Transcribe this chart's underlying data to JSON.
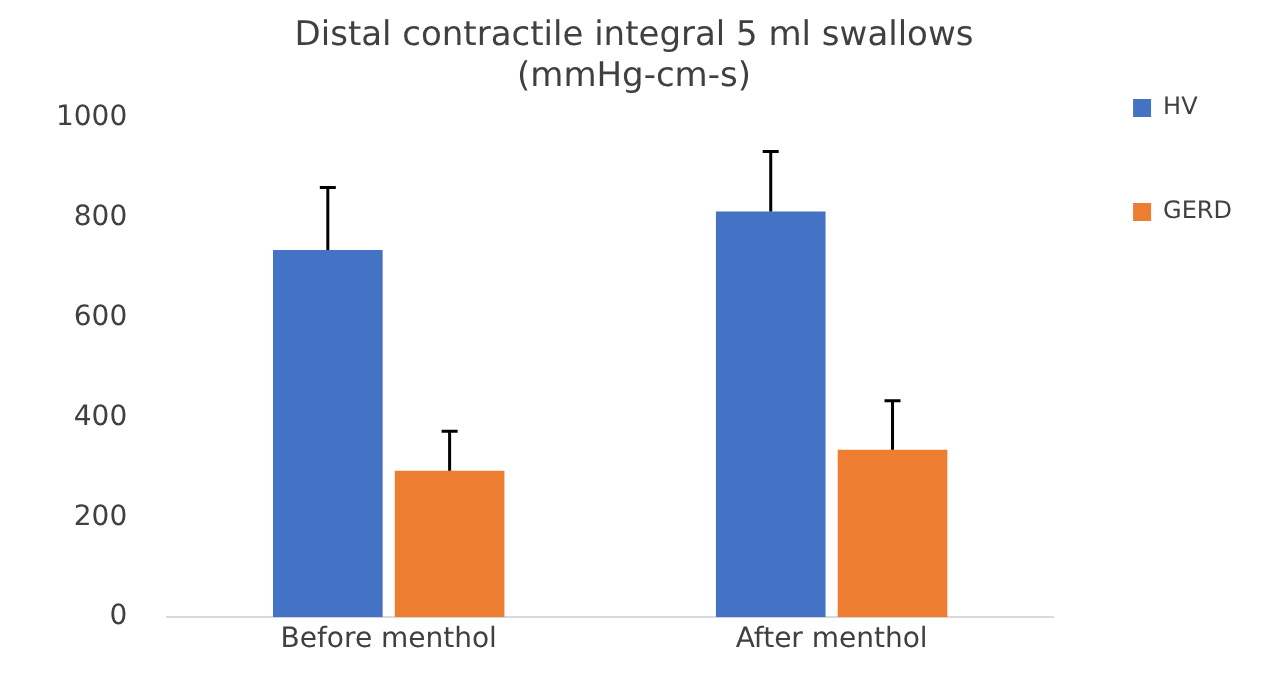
{
  "chart_data": {
    "type": "bar",
    "title": [
      "Distal contractile integral 5 ml swallows",
      "(mmHg-cm-s)"
    ],
    "categories": [
      "Before menthol",
      "After menthol"
    ],
    "series": [
      {
        "name": "HV",
        "color": "#4472c4",
        "values": [
          735,
          812
        ],
        "errors": [
          [
            735,
            860
          ],
          [
            812,
            932
          ]
        ]
      },
      {
        "name": "GERD",
        "color": "#ed7d31",
        "values": [
          293,
          335
        ],
        "errors": [
          [
            293,
            372
          ],
          [
            335,
            433
          ]
        ]
      }
    ],
    "ylim": [
      0,
      1000
    ],
    "yticks": [
      0,
      200,
      400,
      600,
      800,
      1000
    ],
    "grid": false,
    "legend": "top right"
  }
}
